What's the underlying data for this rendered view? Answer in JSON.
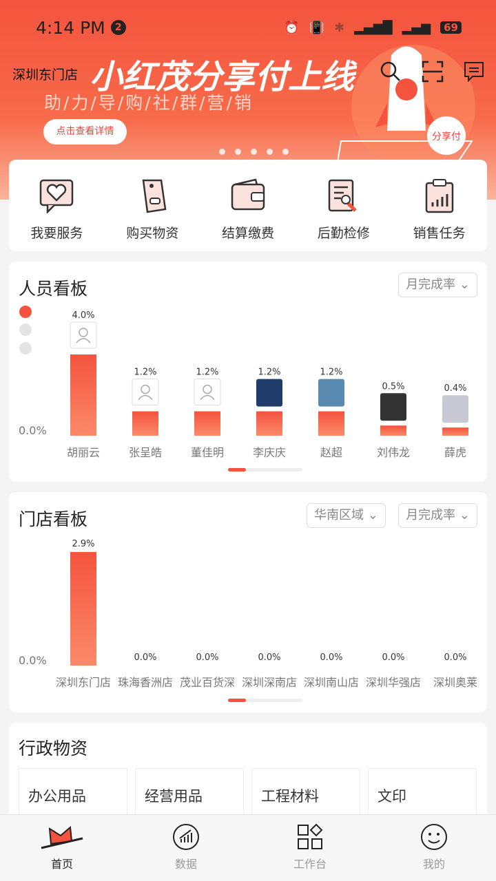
{
  "status_bar": {
    "time": "4:14 PM",
    "notification_count": "2",
    "battery": "69",
    "network": "4G"
  },
  "header": {
    "store_name": "深圳东门店"
  },
  "banner": {
    "headline": "小红茂分享付上线",
    "subline": "助/力/导/购/社/群/营/销",
    "button": "点击查看详情",
    "badge": "分享付",
    "slides": 5,
    "active_slide": 0
  },
  "services": [
    {
      "label": "我要服务",
      "icon": "heart-chat-icon"
    },
    {
      "label": "购买物资",
      "icon": "tag-icon"
    },
    {
      "label": "结算缴费",
      "icon": "wallet-icon"
    },
    {
      "label": "后勤检修",
      "icon": "document-wrench-icon"
    },
    {
      "label": "销售任务",
      "icon": "clipboard-chart-icon"
    }
  ],
  "people_board": {
    "title": "人员看板",
    "filter": "月完成率",
    "zero_label": "0.0%"
  },
  "store_board": {
    "title": "门店看板",
    "region_filter": "华南区域",
    "filter": "月完成率",
    "zero_label": "0.0%"
  },
  "chart_data": [
    {
      "type": "bar",
      "categories": [
        "胡丽云",
        "张呈皓",
        "董佳明",
        "李庆庆",
        "赵超",
        "刘伟龙",
        "薛虎"
      ],
      "values": [
        4.0,
        1.2,
        1.2,
        1.2,
        1.2,
        0.5,
        0.4
      ],
      "value_labels": [
        "4.0%",
        "1.2%",
        "1.2%",
        "1.2%",
        "1.2%",
        "0.5%",
        "0.4%"
      ],
      "avatars": [
        "default",
        "default",
        "default",
        "photo",
        "photo",
        "photo",
        "photo"
      ]
    },
    {
      "type": "bar",
      "categories": [
        "深圳东门店",
        "珠海香洲店",
        "茂业百货深",
        "深圳深南店",
        "深圳南山店",
        "深圳华强店",
        "深圳奥莱"
      ],
      "values": [
        2.9,
        0,
        0,
        0,
        0,
        0,
        0
      ],
      "value_labels": [
        "2.9%",
        "0.0%",
        "0.0%",
        "0.0%",
        "0.0%",
        "0.0%",
        "0.0%"
      ]
    }
  ],
  "admin_supplies": {
    "title": "行政物资",
    "items": [
      "办公用品",
      "经营用品",
      "工程材料",
      "文印"
    ]
  },
  "nav": [
    {
      "label": "首页",
      "active": true
    },
    {
      "label": "数据"
    },
    {
      "label": "工作台"
    },
    {
      "label": "我的"
    }
  ],
  "colors": {
    "accent": "#f4533d",
    "bar": "#f4533d"
  }
}
